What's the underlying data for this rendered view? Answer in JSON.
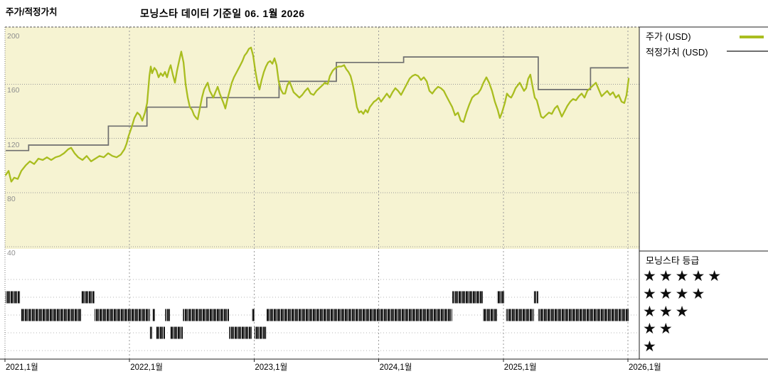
{
  "header": {
    "section_label": "주가/적정가치",
    "title": "모닝스타 데이터 기준일 06. 1월 2026"
  },
  "legend": {
    "price_label": "주가 (USD)",
    "fair_value_label": "적정가치 (USD)",
    "rating_title": "모닝스타 등급",
    "star_rows": [
      5,
      4,
      3,
      2,
      1
    ]
  },
  "colors": {
    "price": "#a9bd1f",
    "fair_value": "#6f6f6f",
    "band_bg": "#f6f3d2",
    "grid": "#9a9a9a",
    "row_grid": "#b5b5b5",
    "border": "#222222",
    "ytick_text": "#8e8e8e",
    "axis_text": "#000000",
    "rating_bar_dark": "#141414",
    "rating_bar_mid": "#6b6b6b",
    "rating_bar_light": "#ededed"
  },
  "chart_data": {
    "type": "line",
    "title": "모닝스타 데이터 기준일 06. 1월 2026",
    "x_axis": {
      "ticks": [
        {
          "year": 2021,
          "label": "2021,1월"
        },
        {
          "year": 2022,
          "label": "2022,1월"
        },
        {
          "year": 2023,
          "label": "2023,1월"
        },
        {
          "year": 2024,
          "label": "2024,1월"
        },
        {
          "year": 2025,
          "label": "2025,1월"
        },
        {
          "year": 2026,
          "label": "2026,1월"
        }
      ],
      "range": [
        2021.0,
        2026.09
      ]
    },
    "y_axis": {
      "ticks": [
        200,
        160,
        120,
        80,
        40
      ],
      "range": [
        38,
        202
      ],
      "band_range": [
        40,
        202
      ]
    },
    "series": [
      {
        "name": "주가 (USD)",
        "kind": "price",
        "points": [
          [
            2021.006,
            93
          ],
          [
            2021.029,
            96
          ],
          [
            2021.051,
            88
          ],
          [
            2021.074,
            91
          ],
          [
            2021.103,
            90
          ],
          [
            2021.131,
            96
          ],
          [
            2021.166,
            100
          ],
          [
            2021.2,
            103
          ],
          [
            2021.234,
            101
          ],
          [
            2021.268,
            105
          ],
          [
            2021.303,
            104
          ],
          [
            2021.337,
            106
          ],
          [
            2021.371,
            104
          ],
          [
            2021.405,
            106
          ],
          [
            2021.44,
            107
          ],
          [
            2021.474,
            109
          ],
          [
            2021.508,
            112
          ],
          [
            2021.531,
            113
          ],
          [
            2021.559,
            109
          ],
          [
            2021.588,
            106
          ],
          [
            2021.622,
            104
          ],
          [
            2021.656,
            107
          ],
          [
            2021.691,
            103
          ],
          [
            2021.725,
            105
          ],
          [
            2021.759,
            107
          ],
          [
            2021.793,
            106
          ],
          [
            2021.828,
            109
          ],
          [
            2021.862,
            107
          ],
          [
            2021.896,
            106
          ],
          [
            2021.93,
            108
          ],
          [
            2021.959,
            112
          ],
          [
            2021.976,
            116
          ],
          [
            2021.993,
            122
          ],
          [
            2022.016,
            128
          ],
          [
            2022.039,
            135
          ],
          [
            2022.062,
            139
          ],
          [
            2022.084,
            137
          ],
          [
            2022.102,
            133
          ],
          [
            2022.124,
            139
          ],
          [
            2022.141,
            146
          ],
          [
            2022.159,
            166
          ],
          [
            2022.17,
            173
          ],
          [
            2022.181,
            168
          ],
          [
            2022.199,
            172
          ],
          [
            2022.216,
            170
          ],
          [
            2022.233,
            165
          ],
          [
            2022.25,
            168
          ],
          [
            2022.267,
            166
          ],
          [
            2022.284,
            169
          ],
          [
            2022.301,
            165
          ],
          [
            2022.318,
            171
          ],
          [
            2022.33,
            174
          ],
          [
            2022.347,
            167
          ],
          [
            2022.364,
            161
          ],
          [
            2022.381,
            170
          ],
          [
            2022.398,
            177
          ],
          [
            2022.415,
            184
          ],
          [
            2022.433,
            176
          ],
          [
            2022.45,
            160
          ],
          [
            2022.467,
            150
          ],
          [
            2022.484,
            143
          ],
          [
            2022.501,
            141
          ],
          [
            2022.518,
            137
          ],
          [
            2022.535,
            135
          ],
          [
            2022.547,
            134
          ],
          [
            2022.564,
            142
          ],
          [
            2022.581,
            150
          ],
          [
            2022.598,
            156
          ],
          [
            2022.615,
            159
          ],
          [
            2022.627,
            161
          ],
          [
            2022.644,
            155
          ],
          [
            2022.661,
            152
          ],
          [
            2022.672,
            150
          ],
          [
            2022.689,
            154
          ],
          [
            2022.707,
            158
          ],
          [
            2022.724,
            153
          ],
          [
            2022.741,
            149
          ],
          [
            2022.758,
            145
          ],
          [
            2022.769,
            142
          ],
          [
            2022.786,
            149
          ],
          [
            2022.803,
            155
          ],
          [
            2022.821,
            161
          ],
          [
            2022.838,
            165
          ],
          [
            2022.855,
            168
          ],
          [
            2022.872,
            171
          ],
          [
            2022.889,
            174
          ],
          [
            2022.906,
            177
          ],
          [
            2022.923,
            181
          ],
          [
            2022.94,
            183
          ],
          [
            2022.958,
            186
          ],
          [
            2022.975,
            187
          ],
          [
            2022.992,
            181
          ],
          [
            2023.009,
            170
          ],
          [
            2023.026,
            161
          ],
          [
            2023.043,
            156
          ],
          [
            2023.06,
            163
          ],
          [
            2023.078,
            169
          ],
          [
            2023.095,
            173
          ],
          [
            2023.112,
            176
          ],
          [
            2023.129,
            177
          ],
          [
            2023.146,
            175
          ],
          [
            2023.163,
            179
          ],
          [
            2023.18,
            174
          ],
          [
            2023.197,
            162
          ],
          [
            2023.214,
            156
          ],
          [
            2023.232,
            153
          ],
          [
            2023.249,
            153
          ],
          [
            2023.266,
            159
          ],
          [
            2023.283,
            162
          ],
          [
            2023.3,
            158
          ],
          [
            2023.317,
            154
          ],
          [
            2023.34,
            152
          ],
          [
            2023.363,
            150
          ],
          [
            2023.386,
            152
          ],
          [
            2023.409,
            155
          ],
          [
            2023.431,
            157
          ],
          [
            2023.454,
            153
          ],
          [
            2023.477,
            152
          ],
          [
            2023.5,
            155
          ],
          [
            2023.523,
            157
          ],
          [
            2023.546,
            159
          ],
          [
            2023.568,
            161
          ],
          [
            2023.591,
            160
          ],
          [
            2023.608,
            166
          ],
          [
            2023.631,
            170
          ],
          [
            2023.654,
            172
          ],
          [
            2023.677,
            173
          ],
          [
            2023.7,
            173
          ],
          [
            2023.722,
            174
          ],
          [
            2023.74,
            171
          ],
          [
            2023.757,
            169
          ],
          [
            2023.774,
            166
          ],
          [
            2023.791,
            160
          ],
          [
            2023.808,
            152
          ],
          [
            2023.825,
            143
          ],
          [
            2023.842,
            139
          ],
          [
            2023.859,
            140
          ],
          [
            2023.876,
            138
          ],
          [
            2023.894,
            141
          ],
          [
            2023.911,
            139
          ],
          [
            2023.928,
            143
          ],
          [
            2023.945,
            145
          ],
          [
            2023.962,
            147
          ],
          [
            2023.979,
            148
          ],
          [
            2024.0,
            150
          ],
          [
            2024.019,
            147
          ],
          [
            2024.042,
            150
          ],
          [
            2024.065,
            153
          ],
          [
            2024.088,
            150
          ],
          [
            2024.111,
            154
          ],
          [
            2024.133,
            157
          ],
          [
            2024.156,
            155
          ],
          [
            2024.179,
            152
          ],
          [
            2024.202,
            156
          ],
          [
            2024.225,
            160
          ],
          [
            2024.248,
            164
          ],
          [
            2024.27,
            166
          ],
          [
            2024.293,
            167
          ],
          [
            2024.316,
            166
          ],
          [
            2024.339,
            163
          ],
          [
            2024.362,
            165
          ],
          [
            2024.385,
            162
          ],
          [
            2024.407,
            155
          ],
          [
            2024.43,
            153
          ],
          [
            2024.453,
            156
          ],
          [
            2024.476,
            158
          ],
          [
            2024.499,
            157
          ],
          [
            2024.522,
            155
          ],
          [
            2024.544,
            151
          ],
          [
            2024.567,
            147
          ],
          [
            2024.59,
            143
          ],
          [
            2024.613,
            137
          ],
          [
            2024.636,
            139
          ],
          [
            2024.658,
            133
          ],
          [
            2024.681,
            132
          ],
          [
            2024.704,
            139
          ],
          [
            2024.727,
            145
          ],
          [
            2024.75,
            150
          ],
          [
            2024.772,
            152
          ],
          [
            2024.795,
            153
          ],
          [
            2024.818,
            156
          ],
          [
            2024.841,
            161
          ],
          [
            2024.864,
            165
          ],
          [
            2024.886,
            161
          ],
          [
            2024.909,
            155
          ],
          [
            2024.932,
            147
          ],
          [
            2024.955,
            141
          ],
          [
            2024.972,
            135
          ],
          [
            2024.989,
            139
          ],
          [
            2025.012,
            146
          ],
          [
            2025.029,
            153
          ],
          [
            2025.046,
            151
          ],
          [
            2025.063,
            150
          ],
          [
            2025.08,
            153
          ],
          [
            2025.098,
            157
          ],
          [
            2025.115,
            159
          ],
          [
            2025.132,
            161
          ],
          [
            2025.149,
            158
          ],
          [
            2025.166,
            155
          ],
          [
            2025.183,
            157
          ],
          [
            2025.2,
            164
          ],
          [
            2025.217,
            167
          ],
          [
            2025.235,
            158
          ],
          [
            2025.252,
            150
          ],
          [
            2025.269,
            148
          ],
          [
            2025.286,
            142
          ],
          [
            2025.303,
            136
          ],
          [
            2025.32,
            135
          ],
          [
            2025.343,
            137
          ],
          [
            2025.366,
            139
          ],
          [
            2025.389,
            138
          ],
          [
            2025.412,
            142
          ],
          [
            2025.434,
            144
          ],
          [
            2025.452,
            140
          ],
          [
            2025.469,
            136
          ],
          [
            2025.492,
            140
          ],
          [
            2025.514,
            144
          ],
          [
            2025.537,
            147
          ],
          [
            2025.56,
            149
          ],
          [
            2025.583,
            148
          ],
          [
            2025.606,
            151
          ],
          [
            2025.629,
            153
          ],
          [
            2025.652,
            150
          ],
          [
            2025.674,
            155
          ],
          [
            2025.697,
            157
          ],
          [
            2025.72,
            159
          ],
          [
            2025.743,
            161
          ],
          [
            2025.766,
            156
          ],
          [
            2025.789,
            151
          ],
          [
            2025.811,
            153
          ],
          [
            2025.834,
            155
          ],
          [
            2025.857,
            152
          ],
          [
            2025.88,
            154
          ],
          [
            2025.903,
            150
          ],
          [
            2025.926,
            152
          ],
          [
            2025.949,
            147
          ],
          [
            2025.971,
            146
          ],
          [
            2025.989,
            152
          ],
          [
            2026.006,
            164
          ]
        ]
      },
      {
        "name": "적정가치 (USD)",
        "kind": "step",
        "points": [
          [
            2021.006,
            111
          ],
          [
            2021.19,
            115
          ],
          [
            2021.83,
            129
          ],
          [
            2022.14,
            143
          ],
          [
            2022.62,
            150
          ],
          [
            2023.2,
            162
          ],
          [
            2023.66,
            176
          ],
          [
            2024.2,
            180
          ],
          [
            2025.28,
            156
          ],
          [
            2025.7,
            172
          ],
          [
            2026.006,
            172
          ]
        ]
      }
    ],
    "rating_timeline": {
      "rows": [
        5,
        4,
        3,
        2,
        1
      ],
      "segments": [
        {
          "stars": 4,
          "start": 2021.006,
          "end": 2021.12
        },
        {
          "stars": 3,
          "start": 2021.126,
          "end": 2021.611
        },
        {
          "stars": 4,
          "start": 2021.611,
          "end": 2021.719
        },
        {
          "stars": 3,
          "start": 2021.719,
          "end": 2022.164
        },
        {
          "stars": 2,
          "start": 2022.164,
          "end": 2022.181
        },
        {
          "stars": 3,
          "start": 2022.181,
          "end": 2022.204
        },
        {
          "stars": 2,
          "start": 2022.21,
          "end": 2022.284
        },
        {
          "stars": 3,
          "start": 2022.284,
          "end": 2022.324
        },
        {
          "stars": 2,
          "start": 2022.324,
          "end": 2022.427
        },
        {
          "stars": 3,
          "start": 2022.427,
          "end": 2022.798
        },
        {
          "stars": 2,
          "start": 2022.798,
          "end": 2022.98
        },
        {
          "stars": 3,
          "start": 2022.98,
          "end": 2023.003
        },
        {
          "stars": 2,
          "start": 2023.003,
          "end": 2023.1
        },
        {
          "stars": 3,
          "start": 2023.1,
          "end": 2024.59
        },
        {
          "stars": 4,
          "start": 2024.59,
          "end": 2024.835
        },
        {
          "stars": 3,
          "start": 2024.835,
          "end": 2024.949
        },
        {
          "stars": 4,
          "start": 2024.949,
          "end": 2025.006
        },
        {
          "stars": 3,
          "start": 2025.023,
          "end": 2025.246
        },
        {
          "stars": 4,
          "start": 2025.246,
          "end": 2025.28
        },
        {
          "stars": 3,
          "start": 2025.28,
          "end": 2026.006
        }
      ]
    }
  }
}
